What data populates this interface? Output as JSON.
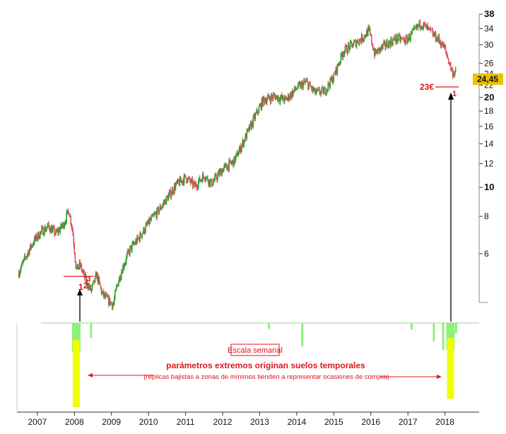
{
  "chart_data": {
    "type": "candlestick",
    "scale": "log",
    "ylim": [
      3.9,
      38
    ],
    "y_ticks": [
      6,
      8,
      10,
      12,
      14,
      16,
      18,
      20,
      22,
      24,
      26,
      30,
      34,
      38
    ],
    "y_ticks_bold": [
      10,
      20,
      38
    ],
    "x_ticks": [
      "2007",
      "2008",
      "2009",
      "2010",
      "2011",
      "2012",
      "2013",
      "2014",
      "2015",
      "2016",
      "2017",
      "2018"
    ],
    "x_range": [
      2006.45,
      2018.35
    ],
    "last_price": "24,45",
    "price_path": [
      [
        2006.5,
        5.2
      ],
      [
        2006.7,
        5.9
      ],
      [
        2006.9,
        6.6
      ],
      [
        2007.1,
        7.1
      ],
      [
        2007.3,
        7.4
      ],
      [
        2007.5,
        7.0
      ],
      [
        2007.7,
        7.5
      ],
      [
        2007.85,
        8.4
      ],
      [
        2007.95,
        7.2
      ],
      [
        2008.05,
        5.3
      ],
      [
        2008.15,
        5.5
      ],
      [
        2008.3,
        4.9
      ],
      [
        2008.45,
        4.5
      ],
      [
        2008.6,
        5.1
      ],
      [
        2008.75,
        4.4
      ],
      [
        2008.9,
        4.2
      ],
      [
        2009.05,
        4.05
      ],
      [
        2009.15,
        4.7
      ],
      [
        2009.3,
        5.4
      ],
      [
        2009.5,
        6.2
      ],
      [
        2009.75,
        6.8
      ],
      [
        2010.0,
        7.6
      ],
      [
        2010.25,
        8.3
      ],
      [
        2010.5,
        9.2
      ],
      [
        2010.75,
        10.2
      ],
      [
        2011.0,
        10.8
      ],
      [
        2011.25,
        10.1
      ],
      [
        2011.5,
        11.0
      ],
      [
        2011.7,
        10.3
      ],
      [
        2012.0,
        11.5
      ],
      [
        2012.3,
        12.2
      ],
      [
        2012.45,
        13.3
      ],
      [
        2012.7,
        15.5
      ],
      [
        2012.9,
        17.5
      ],
      [
        2013.1,
        19.6
      ],
      [
        2013.4,
        20.2
      ],
      [
        2013.7,
        19.6
      ],
      [
        2014.0,
        21.5
      ],
      [
        2014.25,
        22.5
      ],
      [
        2014.5,
        20.7
      ],
      [
        2014.75,
        21.0
      ],
      [
        2015.0,
        23.5
      ],
      [
        2015.25,
        28.5
      ],
      [
        2015.5,
        30.0
      ],
      [
        2015.75,
        31.5
      ],
      [
        2015.95,
        33.5
      ],
      [
        2016.1,
        28.0
      ],
      [
        2016.4,
        30.0
      ],
      [
        2016.7,
        31.5
      ],
      [
        2016.95,
        31.0
      ],
      [
        2017.15,
        33.0
      ],
      [
        2017.35,
        35.5
      ],
      [
        2017.6,
        33.2
      ],
      [
        2017.85,
        31.0
      ],
      [
        2018.0,
        29.0
      ],
      [
        2018.1,
        26.5
      ],
      [
        2018.2,
        24.2
      ],
      [
        2018.3,
        24.45
      ]
    ],
    "volume_spikes": [
      {
        "x": 2008.05,
        "depth": 1.0,
        "color": "#f0ff00"
      },
      {
        "x": 2018.15,
        "depth": 0.9,
        "color": "#f0ff00"
      },
      {
        "x": 2008.45,
        "depth": 0.18,
        "color": "#8ff07a"
      },
      {
        "x": 2014.15,
        "depth": 0.28,
        "color": "#8ff07a"
      },
      {
        "x": 2013.25,
        "depth": 0.07,
        "color": "#8ff07a"
      },
      {
        "x": 2017.1,
        "depth": 0.08,
        "color": "#8ff07a"
      },
      {
        "x": 2017.7,
        "depth": 0.22,
        "color": "#8ff07a"
      },
      {
        "x": 2017.95,
        "depth": 0.32,
        "color": "#8ff07a"
      },
      {
        "x": 2018.3,
        "depth": 0.12,
        "color": "#8ff07a"
      }
    ],
    "annotations": {
      "marker_2008": "1",
      "marker_2008b": "2",
      "marker_2008c": "3",
      "level_2018": "23€",
      "marker_2018": "1",
      "box_label": "Escala semanal",
      "title": "parámetros extremos originan suelos temporales",
      "subtitle": "(réplicas bajistas a zonas de mínimos tienden a representar ocasiones de compra)"
    },
    "colors": {
      "up": "#2e9e2e",
      "down": "#e0505a",
      "accent_red": "#e0141e",
      "price_badge": "#e8c400"
    }
  }
}
